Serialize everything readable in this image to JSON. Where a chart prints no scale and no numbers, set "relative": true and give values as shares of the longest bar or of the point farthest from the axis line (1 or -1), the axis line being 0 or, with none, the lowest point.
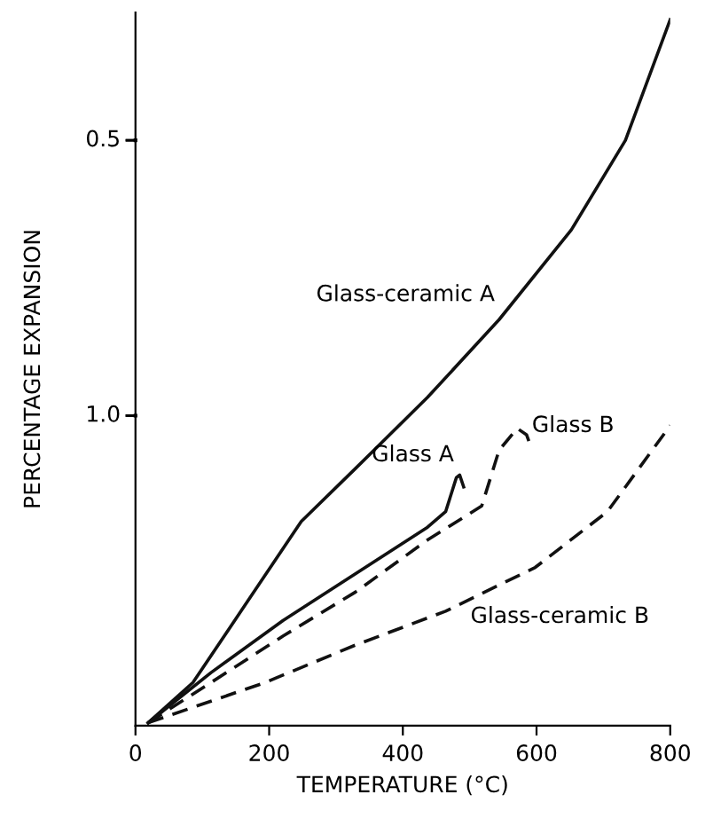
{
  "chart_data": {
    "type": "line",
    "xlabel": "TEMPERATURE (°C)",
    "ylabel": "PERCENTAGE EXPANSION",
    "relative": true,
    "xlim": [
      0,
      800
    ],
    "xticks": [
      0,
      200,
      400,
      600,
      800
    ],
    "grid": false,
    "legend": false,
    "marker": "none",
    "series": [
      {
        "color": "#111111",
        "line_style": "solid",
        "x": [
          19,
          86,
          167,
          248,
          329,
          437,
          544,
          652,
          733,
          800
        ],
        "values": [
          0.004,
          0.061,
          0.175,
          0.289,
          0.364,
          0.465,
          0.575,
          0.702,
          0.829,
          1.0
        ]
      },
      {
        "color": "#111111",
        "line_style": "solid",
        "x": [
          19,
          113,
          221,
          329,
          437,
          464,
          480,
          485,
          491
        ],
        "values": [
          0.004,
          0.075,
          0.149,
          0.215,
          0.281,
          0.303,
          0.351,
          0.355,
          0.338
        ]
      },
      {
        "color": "#111111",
        "line_style": "dashed",
        "x": [
          19,
          113,
          221,
          329,
          437,
          518,
          544,
          571,
          585,
          590
        ],
        "values": [
          0.004,
          0.061,
          0.127,
          0.189,
          0.263,
          0.311,
          0.39,
          0.421,
          0.412,
          0.399
        ]
      },
      {
        "color": "#111111",
        "line_style": "dashed",
        "x": [
          19,
          194,
          329,
          464,
          598,
          706,
          800
        ],
        "values": [
          0.004,
          0.061,
          0.114,
          0.162,
          0.224,
          0.303,
          0.425
        ]
      }
    ],
    "annotations": [
      "Glass-ceramic A",
      "Glass A",
      "Glass B",
      "Glass-ceramic B",
      "1.0",
      "0.5"
    ]
  }
}
